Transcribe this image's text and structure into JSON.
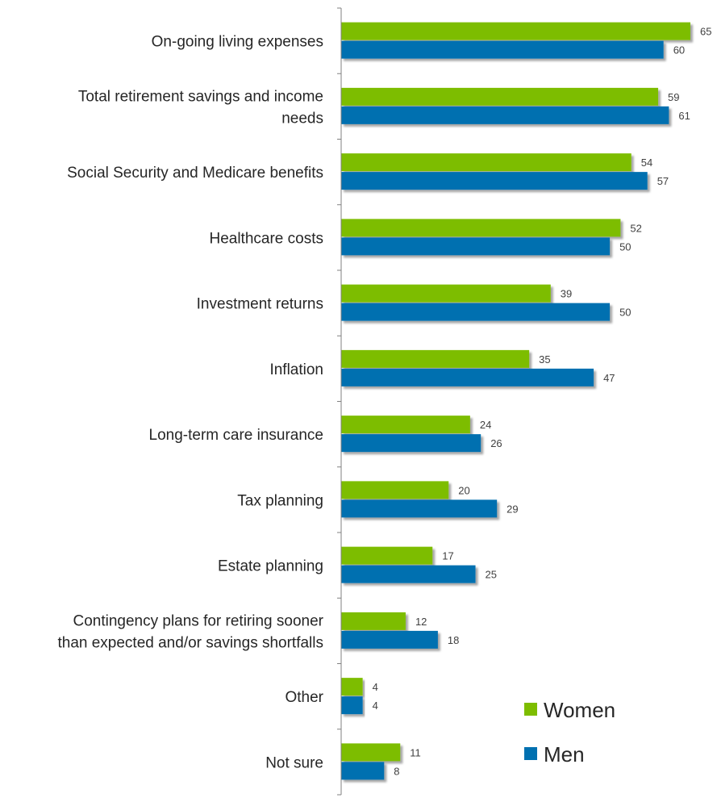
{
  "chart_data": {
    "type": "bar",
    "orientation": "horizontal",
    "categories": [
      [
        "On-going living expenses"
      ],
      [
        "Total retirement savings and income",
        "needs"
      ],
      [
        "Social Security and Medicare benefits"
      ],
      [
        "Healthcare costs"
      ],
      [
        "Investment returns"
      ],
      [
        "Inflation"
      ],
      [
        "Long-term care insurance"
      ],
      [
        "Tax planning"
      ],
      [
        "Estate planning"
      ],
      [
        "Contingency plans for retiring sooner",
        "than expected and/or savings shortfalls"
      ],
      [
        "Other"
      ],
      [
        "Not sure"
      ]
    ],
    "series": [
      {
        "name": "Women",
        "color": "#7dbd00",
        "values": [
          65,
          59,
          54,
          52,
          39,
          35,
          24,
          20,
          17,
          12,
          4,
          11
        ]
      },
      {
        "name": "Men",
        "color": "#0070b0",
        "values": [
          60,
          61,
          57,
          50,
          50,
          47,
          26,
          29,
          25,
          18,
          4,
          8
        ]
      }
    ],
    "xlim": [
      0,
      65
    ],
    "grid": false,
    "legend_position": "bottom-right",
    "data_labels": true
  }
}
